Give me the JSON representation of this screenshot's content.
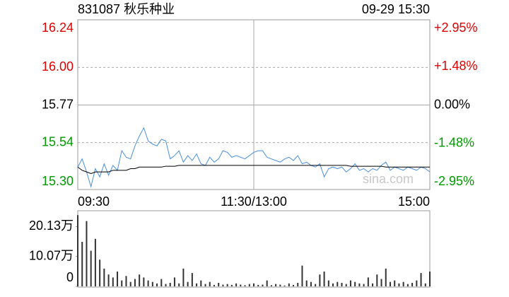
{
  "chart_data": [
    {
      "type": "line",
      "title": "831087 秋乐种业",
      "subtitle": "09-29 15:30",
      "watermark": "sina.com",
      "up_color": "#e00000",
      "down_color": "#009a00",
      "flat_color": "#000000",
      "xlim": [
        0,
        240
      ],
      "xticks": [
        {
          "value": 0,
          "label": "09:30"
        },
        {
          "value": 120,
          "label": "11:30/13:00"
        },
        {
          "value": 240,
          "label": "15:00"
        }
      ],
      "ylim": [
        15.3,
        16.24
      ],
      "yticks": [
        {
          "value": 15.3,
          "label": "15.30"
        },
        15.54,
        {
          "value": 15.77,
          "label": "15.77"
        },
        {
          "value": 16.0,
          "label": "16.00"
        },
        16.24
      ],
      "y2lim": [
        -2.95,
        2.95
      ],
      "y2ticks": [
        {
          "value": -2.95,
          "label": "-2.95%"
        },
        {
          "value": -1.48,
          "label": "-1.48%"
        },
        {
          "value": 0,
          "label": "0.00%"
        },
        {
          "value": 1.48,
          "label": "+1.48%"
        },
        {
          "value": 2.95,
          "label": "+2.95%"
        }
      ],
      "grid": true,
      "x": [
        0,
        3,
        6,
        9,
        12,
        15,
        18,
        21,
        24,
        27,
        30,
        33,
        36,
        39,
        42,
        45,
        48,
        51,
        54,
        57,
        60,
        63,
        66,
        69,
        72,
        75,
        78,
        81,
        84,
        87,
        90,
        93,
        96,
        99,
        102,
        105,
        108,
        111,
        114,
        117,
        120,
        123,
        126,
        129,
        132,
        135,
        138,
        141,
        144,
        147,
        150,
        153,
        156,
        159,
        162,
        165,
        168,
        171,
        174,
        177,
        180,
        183,
        186,
        189,
        192,
        195,
        198,
        201,
        204,
        207,
        210,
        213,
        216,
        219,
        222,
        225,
        228,
        231,
        234,
        237,
        240
      ],
      "series": [
        {
          "color": "#4a8fe0",
          "values": [
            15.39,
            15.44,
            15.36,
            15.27,
            15.38,
            15.33,
            15.41,
            15.34,
            15.4,
            15.37,
            15.49,
            15.45,
            15.44,
            15.52,
            15.58,
            15.63,
            15.55,
            15.53,
            15.52,
            15.56,
            15.55,
            15.44,
            15.46,
            15.49,
            15.42,
            15.46,
            15.43,
            15.47,
            15.41,
            15.4,
            15.45,
            15.42,
            15.44,
            15.49,
            15.48,
            15.45,
            15.46,
            15.45,
            15.44,
            15.46,
            15.48,
            15.49,
            15.49,
            15.45,
            15.44,
            15.43,
            15.42,
            15.44,
            15.45,
            15.43,
            15.46,
            15.41,
            15.42,
            15.4,
            15.39,
            15.41,
            15.33,
            15.38,
            15.39,
            15.38,
            15.39,
            15.36,
            15.38,
            15.41,
            15.37,
            15.38,
            15.36,
            15.38,
            15.37,
            15.4,
            15.42,
            15.37,
            15.39,
            15.38,
            15.37,
            15.39,
            15.38,
            15.37,
            15.39,
            15.38,
            15.36
          ]
        },
        {
          "color": "#000000",
          "values": [
            15.39,
            15.37,
            15.36,
            15.35,
            15.36,
            15.36,
            15.36,
            15.36,
            15.37,
            15.37,
            15.37,
            15.37,
            15.38,
            15.38,
            15.39,
            15.39,
            15.39,
            15.39,
            15.39,
            15.39,
            15.395,
            15.395,
            15.395,
            15.4,
            15.4,
            15.4,
            15.4,
            15.4,
            15.4,
            15.4,
            15.4,
            15.4,
            15.4,
            15.4,
            15.4,
            15.4,
            15.4,
            15.4,
            15.4,
            15.4,
            15.4,
            15.4,
            15.4,
            15.4,
            15.4,
            15.4,
            15.4,
            15.4,
            15.4,
            15.4,
            15.4,
            15.4,
            15.4,
            15.4,
            15.4,
            15.4,
            15.4,
            15.4,
            15.4,
            15.4,
            15.4,
            15.4,
            15.395,
            15.395,
            15.395,
            15.395,
            15.395,
            15.395,
            15.395,
            15.395,
            15.39,
            15.39,
            15.39,
            15.39,
            15.39,
            15.39,
            15.39,
            15.39,
            15.39,
            15.39,
            15.39
          ]
        }
      ]
    },
    {
      "type": "bar",
      "color": "#333333",
      "xlim": [
        0,
        240
      ],
      "ylim": [
        0,
        250000
      ],
      "yticks": [
        {
          "value": 0,
          "label": "0"
        },
        {
          "value": 100700,
          "label": "10.07万"
        },
        {
          "value": 201300,
          "label": "20.13万"
        }
      ],
      "x": [
        0,
        3,
        6,
        9,
        12,
        15,
        18,
        21,
        24,
        27,
        30,
        33,
        36,
        39,
        42,
        45,
        48,
        51,
        54,
        57,
        60,
        63,
        66,
        69,
        72,
        75,
        78,
        81,
        84,
        87,
        90,
        93,
        96,
        99,
        102,
        105,
        108,
        111,
        114,
        117,
        120,
        123,
        126,
        129,
        132,
        135,
        138,
        141,
        144,
        147,
        150,
        153,
        156,
        159,
        162,
        165,
        168,
        171,
        174,
        177,
        180,
        183,
        186,
        189,
        192,
        195,
        198,
        201,
        204,
        207,
        210,
        213,
        216,
        219,
        222,
        225,
        228,
        231,
        234,
        237,
        240
      ],
      "values": [
        240000,
        150000,
        220000,
        120000,
        160000,
        90000,
        60000,
        40000,
        30000,
        50000,
        20000,
        35000,
        15000,
        25000,
        40000,
        30000,
        20000,
        15000,
        10000,
        25000,
        8000,
        12000,
        30000,
        10000,
        60000,
        15000,
        45000,
        10000,
        20000,
        8000,
        15000,
        5000,
        12000,
        6000,
        8000,
        5000,
        10000,
        6000,
        4000,
        8000,
        10000,
        5000,
        6000,
        20000,
        4000,
        8000,
        6000,
        3000,
        10000,
        5000,
        12000,
        70000,
        20000,
        15000,
        8000,
        40000,
        50000,
        20000,
        10000,
        15000,
        12000,
        8000,
        20000,
        15000,
        10000,
        8000,
        30000,
        10000,
        40000,
        25000,
        60000,
        15000,
        20000,
        10000,
        15000,
        8000,
        12000,
        20000,
        45000,
        10000,
        50000
      ]
    }
  ]
}
